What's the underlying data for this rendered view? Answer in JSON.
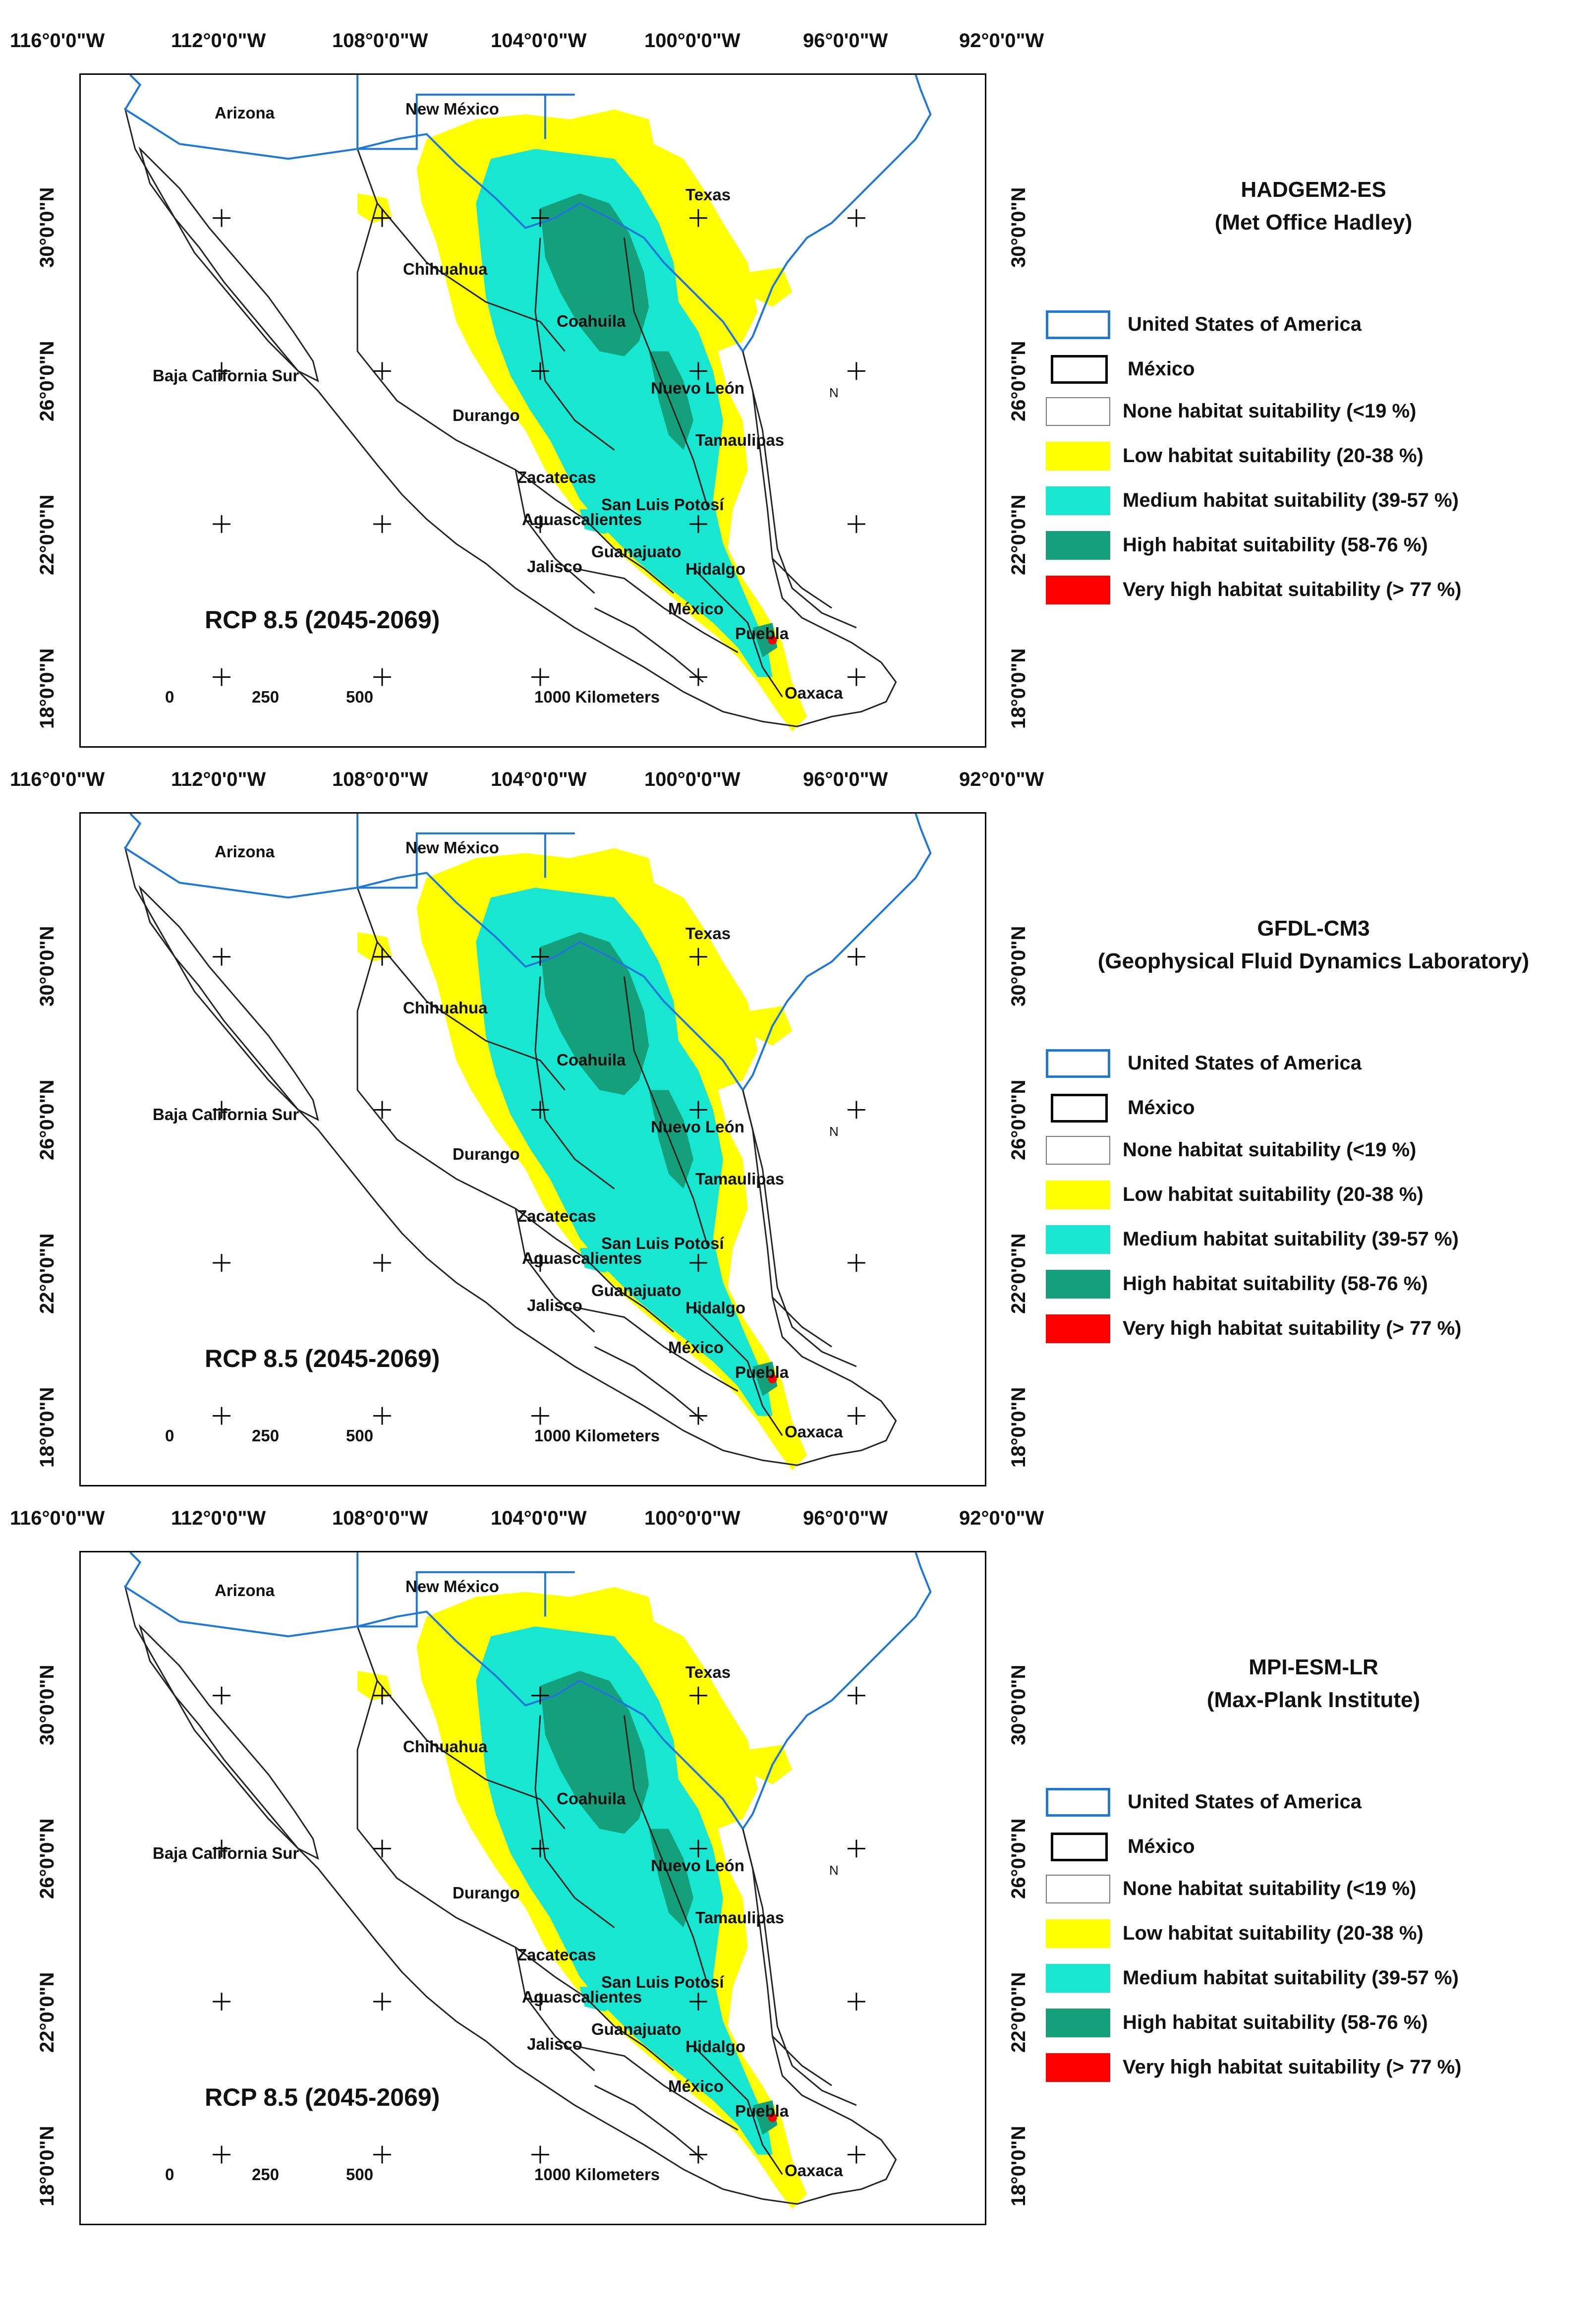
{
  "longitude_labels": [
    "116°0'0\"W",
    "112°0'0\"W",
    "108°0'0\"W",
    "104°0'0\"W",
    "100°0'0\"W",
    "96°0'0\"W",
    "92°0'0\"W"
  ],
  "latitude_labels": [
    "30°0'0\"N",
    "26°0'0\"N",
    "22°0'0\"N",
    "18°0'0\"N"
  ],
  "place_labels": {
    "arizona": "Arizona",
    "new_mexico": "New México",
    "texas": "Texas",
    "chihuahua": "Chihuahua",
    "coahuila": "Coahuila",
    "baja_california_sur": "Baja California Sur",
    "nuevo_leon": "Nuevo León",
    "durango": "Durango",
    "tamaulipas": "Tamaulipas",
    "zacatecas": "Zacatecas",
    "san_luis_potosi": "San Luis Potosí",
    "aguascalientes": "Aguascalientes",
    "guanajuato": "Guanajuato",
    "jalisco": "Jalisco",
    "hidalgo": "Hidalgo",
    "mexico_state": "México",
    "puebla": "Puebla",
    "oaxaca": "Oaxaca"
  },
  "scale": {
    "tick_0": "0",
    "tick_250": "250",
    "tick_500": "500",
    "tick_end": "1000 Kilometers"
  },
  "north_arrow_letter": "N",
  "panels": [
    {
      "model": "HADGEM2-ES",
      "institute": "(Met Office Hadley)",
      "scenario": "RCP 8.5 (2045-2069)"
    },
    {
      "model": "GFDL-CM3",
      "institute": "(Geophysical Fluid Dynamics Laboratory)",
      "scenario": "RCP 8.5 (2045-2069)"
    },
    {
      "model": "MPI-ESM-LR",
      "institute": "(Max-Plank Institute)",
      "scenario": "RCP 8.5 (2045-2069)"
    }
  ],
  "legend": [
    {
      "label": "United States of America",
      "color": "#1f78d6",
      "type": "outline"
    },
    {
      "label": "México",
      "color": "#000000",
      "type": "outline"
    },
    {
      "label": "None habitat suitability (<19 %)",
      "color": "#ffffff",
      "type": "fill"
    },
    {
      "label": "Low habitat suitability (20-38 %)",
      "color": "#ffff00",
      "type": "fill"
    },
    {
      "label": "Medium habitat suitability (39-57 %)",
      "color": "#17e6d0",
      "type": "fill"
    },
    {
      "label": "High habitat suitability (58-76 %)",
      "color": "#14a07a",
      "type": "fill"
    },
    {
      "label": "Very high habitat suitability (> 77 %)",
      "color": "#ff0000",
      "type": "fill"
    }
  ]
}
